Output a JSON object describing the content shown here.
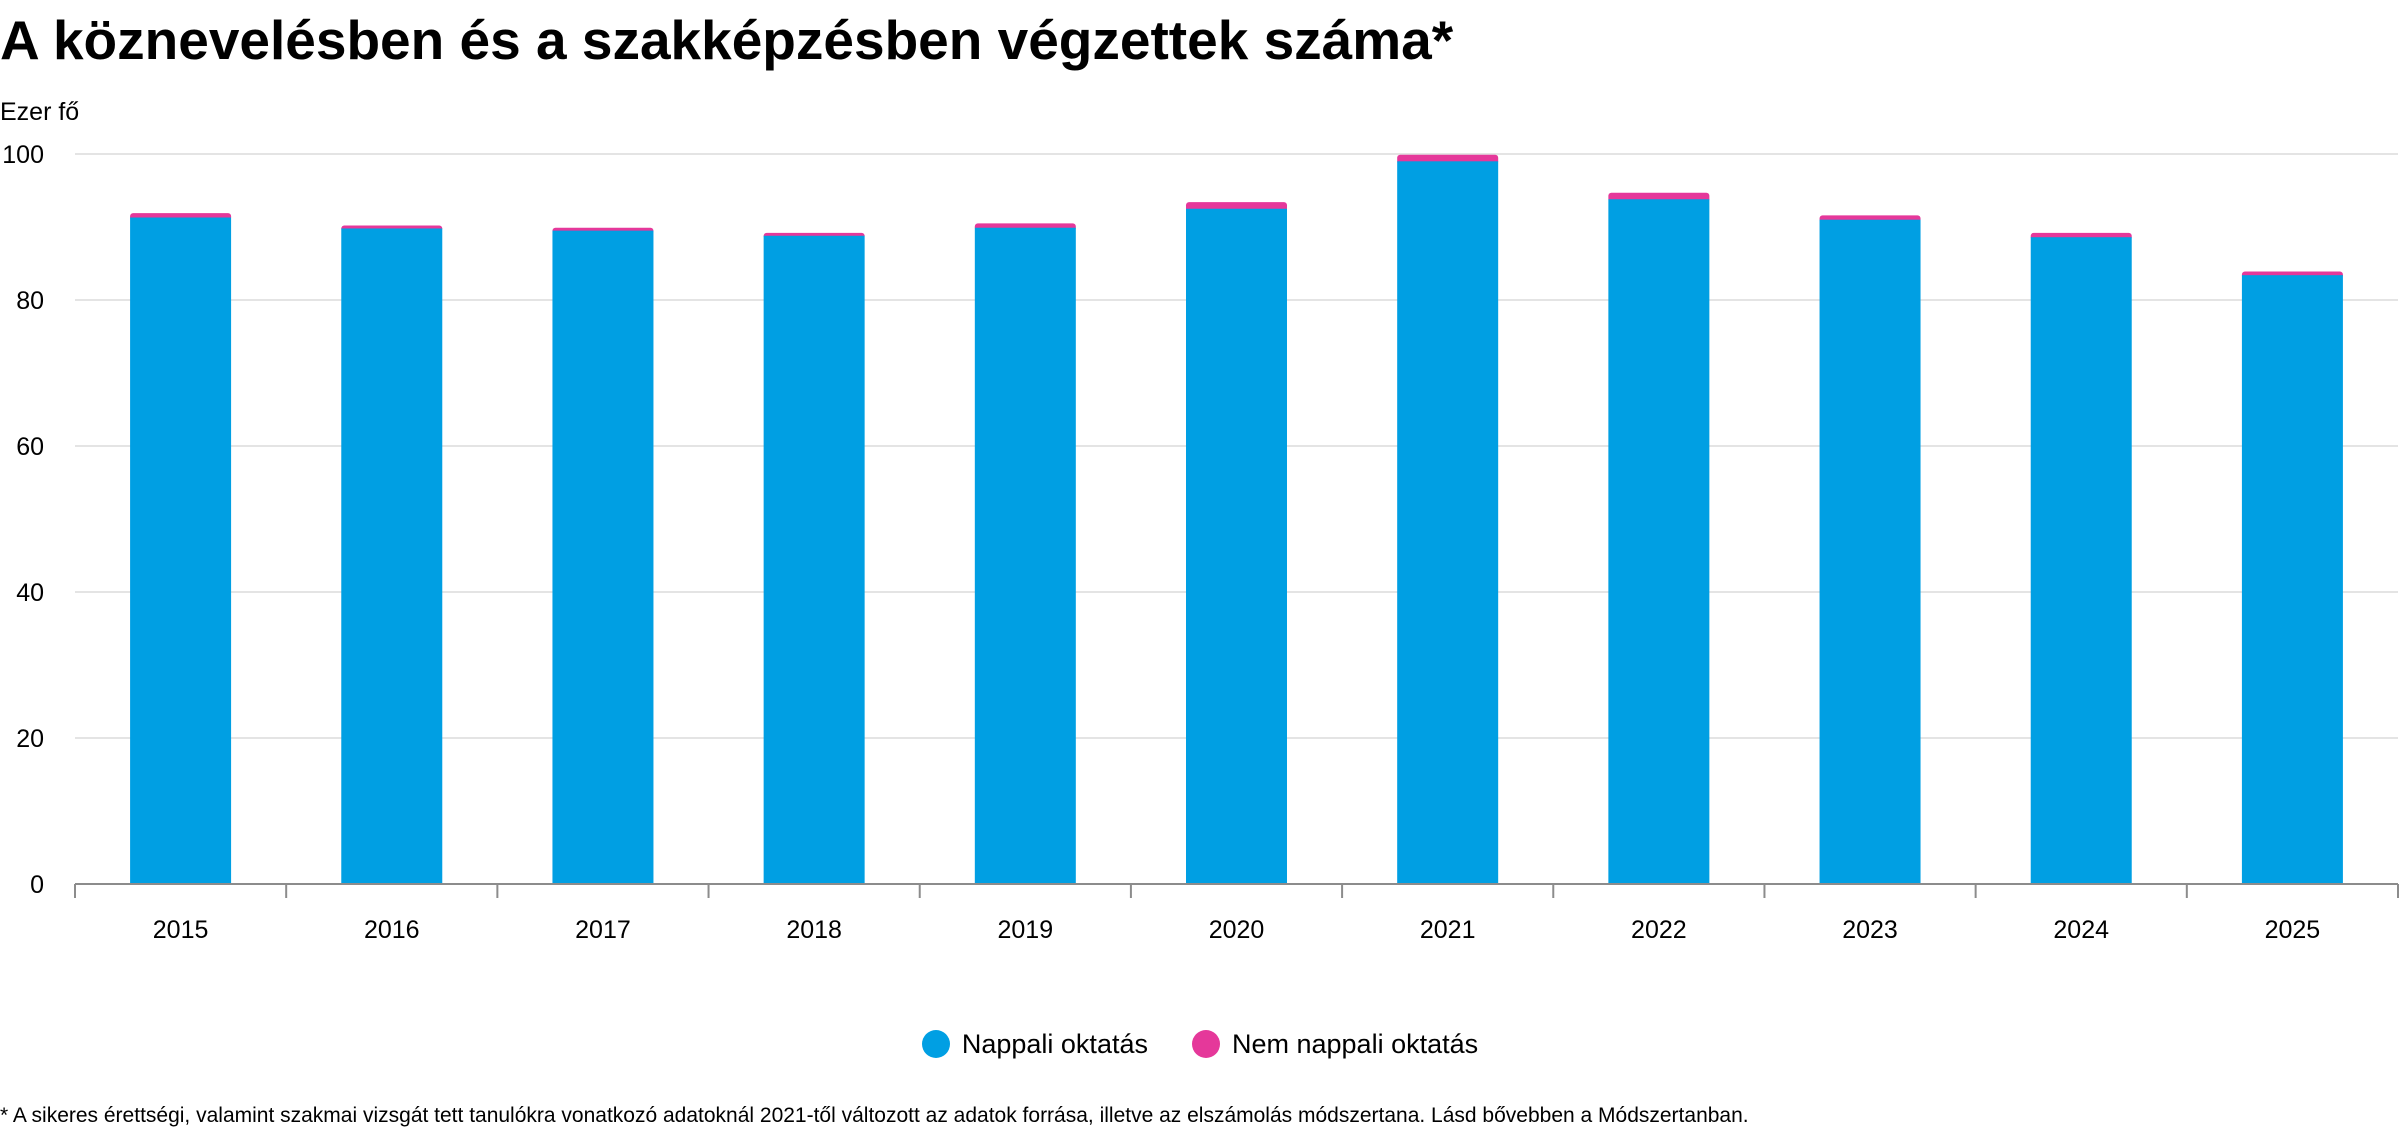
{
  "title": "A köznevelésben és a szakképzésben végzettek száma*",
  "y_unit": "Ezer fő",
  "footnote": "* A sikeres érettségi, valamint szakmai vizsgát tett tanulókra vonatkozó adatoknál 2021-től változott az adatok forrása, illetve az elszámolás módszertana. Lásd bővebben a Módszertanban.",
  "colors": {
    "nappali": "#009fe3",
    "nem_nappali": "#e5389a",
    "grid": "#dcdcdc",
    "axis": "#8c8c8c"
  },
  "legend": [
    {
      "label": "Nappali oktatás",
      "color": "#009fe3"
    },
    {
      "label": "Nem nappali oktatás",
      "color": "#e5389a"
    }
  ],
  "chart_data": {
    "type": "bar",
    "stacked": true,
    "categories": [
      "2015",
      "2016",
      "2017",
      "2018",
      "2019",
      "2020",
      "2021",
      "2022",
      "2023",
      "2024",
      "2025"
    ],
    "series": [
      {
        "name": "Nappali oktatás",
        "values": [
          91.3,
          89.8,
          89.5,
          88.8,
          89.9,
          92.5,
          99.0,
          93.8,
          91.0,
          88.6,
          83.4
        ]
      },
      {
        "name": "Nem nappali oktatás",
        "values": [
          0.6,
          0.4,
          0.4,
          0.4,
          0.6,
          0.9,
          0.9,
          0.9,
          0.6,
          0.6,
          0.5
        ]
      }
    ],
    "ylim": [
      0,
      100
    ],
    "yticks": [
      0,
      20,
      40,
      60,
      80,
      100
    ],
    "grid": true,
    "legend_position": "bottom-center"
  }
}
